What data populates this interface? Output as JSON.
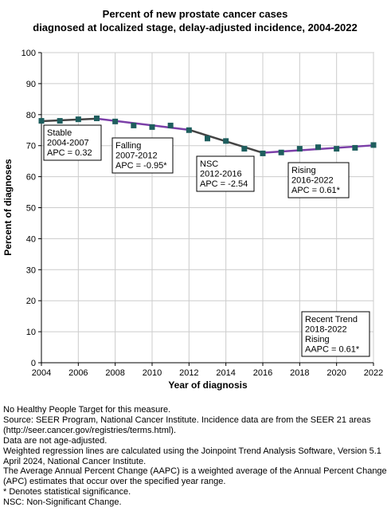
{
  "chart_data": {
    "type": "line",
    "title_lines": [
      "Percent of new prostate cancer cases",
      "diagnosed at localized stage, delay-adjusted incidence, 2004-2022"
    ],
    "xlabel": "Year of diagnosis",
    "ylabel": "Percent of diagnoses",
    "xlim": [
      2004,
      2022
    ],
    "ylim": [
      0,
      100
    ],
    "x_ticks": [
      2004,
      2006,
      2008,
      2010,
      2012,
      2014,
      2016,
      2018,
      2020,
      2022
    ],
    "y_ticks": [
      0,
      10,
      20,
      30,
      40,
      50,
      60,
      70,
      80,
      90,
      100
    ],
    "grid": true,
    "observed": {
      "x": [
        2004,
        2005,
        2006,
        2007,
        2008,
        2009,
        2010,
        2011,
        2012,
        2013,
        2014,
        2015,
        2016,
        2017,
        2018,
        2019,
        2020,
        2021,
        2022
      ],
      "y": [
        78.0,
        78.0,
        78.5,
        78.8,
        77.8,
        76.5,
        76.0,
        76.5,
        75.0,
        72.3,
        71.5,
        69.0,
        67.5,
        67.8,
        69.0,
        69.5,
        69.0,
        69.3,
        70.2
      ],
      "color": "#1e5e5e"
    },
    "trend_segments": [
      {
        "x": [
          2004,
          2007
        ],
        "y": [
          77.9,
          78.7
        ],
        "color": "#444444"
      },
      {
        "x": [
          2007,
          2012
        ],
        "y": [
          78.7,
          75.1
        ],
        "color": "#7b3fa8"
      },
      {
        "x": [
          2012,
          2016
        ],
        "y": [
          75.1,
          67.7
        ],
        "color": "#444444"
      },
      {
        "x": [
          2016,
          2022
        ],
        "y": [
          67.7,
          70.1
        ],
        "color": "#7b3fa8"
      }
    ],
    "annotations": [
      {
        "lines": [
          "Stable",
          "2004-2007",
          "APC =  0.32"
        ]
      },
      {
        "lines": [
          "Falling",
          "2007-2012",
          "APC = -0.95*"
        ]
      },
      {
        "lines": [
          "NSC",
          "2012-2016",
          "APC = -2.54"
        ]
      },
      {
        "lines": [
          "Rising",
          "2016-2022",
          "APC =  0.61*"
        ]
      },
      {
        "lines": [
          "Recent Trend",
          "2018-2022",
          "Rising",
          "AAPC =  0.61*"
        ]
      }
    ]
  },
  "footnotes": [
    "No Healthy People Target for this measure.",
    "Source: SEER Program, National Cancer Institute. Incidence data are from the SEER 21 areas (http://seer.cancer.gov/registries/terms.html).",
    "Data are not age-adjusted.",
    "Weighted regression lines are calculated using the Joinpoint Trend Analysis Software, Version 5.1 April 2024, National Cancer Institute.",
    "The Average Annual Percent Change (AAPC) is a weighted average of the Annual Percent Change (APC) estimates that occur over the specified year range.",
    "* Denotes statistical significance.",
    "NSC: Non-Significant Change."
  ]
}
